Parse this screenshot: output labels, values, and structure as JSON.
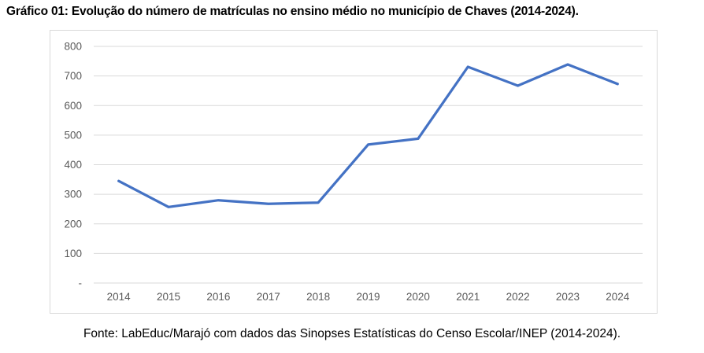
{
  "page": {
    "title": "Gráfico 01: Evolução do número de matrículas no ensino médio no município de Chaves (2014-2024).",
    "source": "Fonte: LabEduc/Marajó com dados das Sinopses Estatísticas do Censo Escolar/INEP (2014-2024)."
  },
  "colors": {
    "line": "#4472C4",
    "gridline": "#d9d9d9",
    "axis_label": "#595959",
    "chart_border": "#d9d9d9",
    "text": "#000000",
    "background": "#ffffff"
  },
  "chart_data": {
    "type": "line",
    "title": "Gráfico 01: Evolução do número de matrículas no ensino médio no município de Chaves (2014-2024).",
    "source_note": "Fonte: LabEduc/Marajó com dados das Sinopses Estatísticas do Censo Escolar/INEP (2014-2024).",
    "categories": [
      "2014",
      "2015",
      "2016",
      "2017",
      "2018",
      "2019",
      "2020",
      "2021",
      "2022",
      "2023",
      "2024"
    ],
    "values": [
      345,
      257,
      280,
      268,
      272,
      468,
      488,
      731,
      667,
      739,
      673
    ],
    "xlabel": "",
    "ylabel": "",
    "ylim": [
      0,
      800
    ],
    "ytick_interval": 100,
    "ytick_labels_bottom_to_top": [
      "-",
      "100",
      "200",
      "300",
      "400",
      "500",
      "600",
      "700",
      "800"
    ],
    "grid": true,
    "legend": "none",
    "markers": "none",
    "line_width": 3.25
  }
}
